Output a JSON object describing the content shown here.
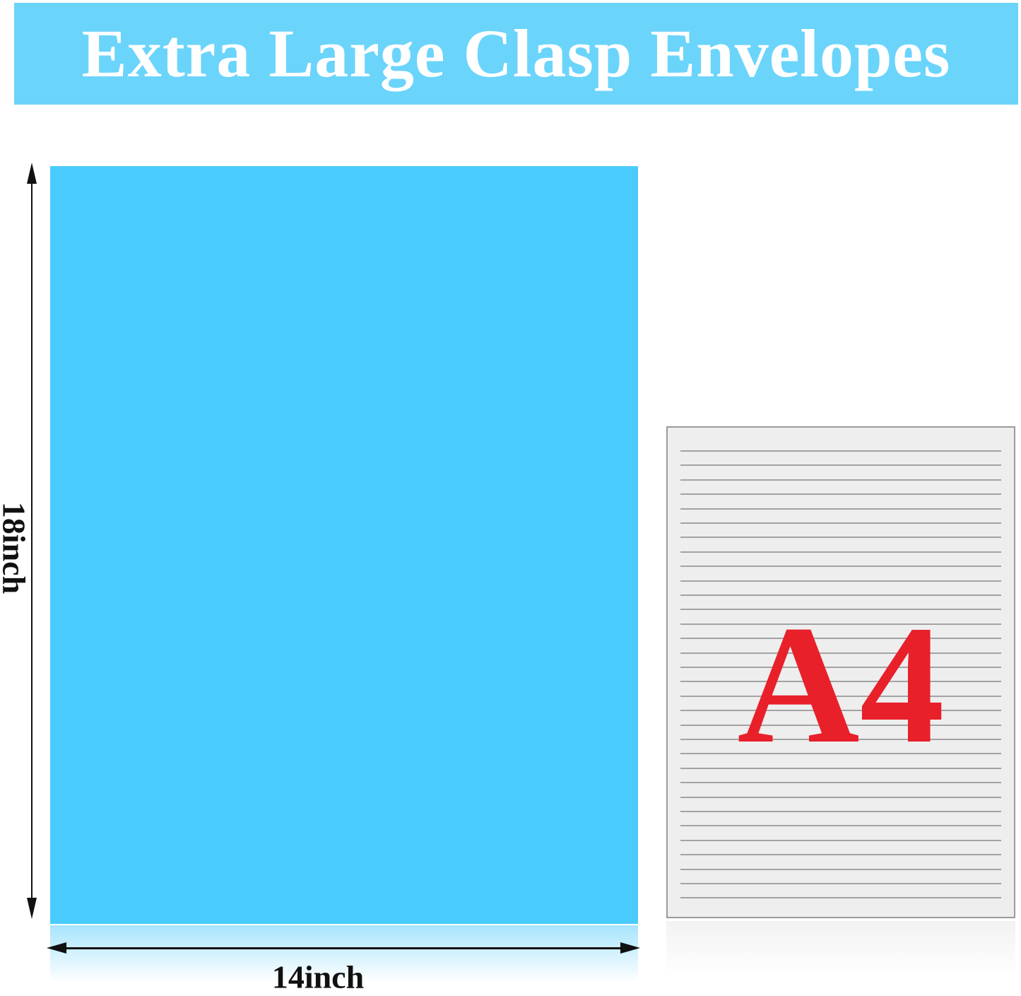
{
  "title": "Extra Large Clasp Envelopes",
  "dimensions": {
    "height_label": "18inch",
    "width_label": "14inch"
  },
  "comparison": {
    "label": "A4"
  },
  "colors": {
    "banner": "#6bd4fb",
    "envelope": "#4acbfd",
    "a4_text": "#e8202a",
    "a4_paper": "#eeeeee"
  }
}
